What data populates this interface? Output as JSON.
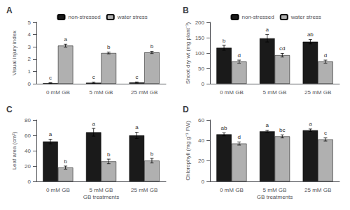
{
  "chart_data": [
    {
      "type": "bar",
      "title": "A",
      "categories": [
        "0 mM GB",
        "5 mM GB",
        "25 mM GB"
      ],
      "ylabel": "Visual injury index",
      "ylim": [
        0,
        5
      ],
      "yticks": [
        0,
        1,
        2,
        3,
        4,
        5
      ],
      "grid": false,
      "legend": "top",
      "series": [
        {
          "name": "non-stressed",
          "color": "#1a1a1a",
          "values": [
            0.05,
            0.08,
            0.1
          ],
          "err": [
            0.03,
            0.04,
            0.04
          ],
          "labels": [
            "c",
            "c",
            "c"
          ]
        },
        {
          "name": "water stress",
          "color": "#b0b0b0",
          "values": [
            3.1,
            2.5,
            2.55
          ],
          "err": [
            0.12,
            0.07,
            0.09
          ],
          "labels": [
            "a",
            "b",
            "b"
          ]
        }
      ]
    },
    {
      "type": "bar",
      "title": "B",
      "categories": [
        "0 mM GB",
        "5 mM GB",
        "25 mM GB"
      ],
      "ylabel": "Shoot dry wt (mg plant⁻¹)",
      "ylim": [
        0,
        200
      ],
      "yticks": [
        0,
        50,
        100,
        150,
        200
      ],
      "grid": false,
      "legend": "top",
      "series": [
        {
          "name": "non-stressed",
          "color": "#1a1a1a",
          "values": [
            117,
            148,
            137
          ],
          "err": [
            8,
            12,
            7
          ],
          "labels": [
            "b",
            "a",
            "ab"
          ]
        },
        {
          "name": "water stress",
          "color": "#b0b0b0",
          "values": [
            72,
            93,
            72
          ],
          "err": [
            5,
            6,
            5
          ],
          "labels": [
            "d",
            "cd",
            "d"
          ]
        }
      ]
    },
    {
      "type": "bar",
      "title": "C",
      "categories": [
        "0 mM GB",
        "5 mM GB",
        "25 mM GB"
      ],
      "xlabel": "GB treatments",
      "ylabel": "Leaf area (cm²)",
      "ylim": [
        0,
        80
      ],
      "yticks": [
        0,
        20,
        40,
        60,
        80
      ],
      "grid": false,
      "series": [
        {
          "name": "non-stressed",
          "color": "#1a1a1a",
          "values": [
            52,
            64,
            60
          ],
          "err": [
            3,
            5,
            4
          ],
          "labels": [
            "a",
            "a",
            "a"
          ]
        },
        {
          "name": "water stress",
          "color": "#b0b0b0",
          "values": [
            18,
            26,
            27
          ],
          "err": [
            2,
            3,
            3
          ],
          "labels": [
            "b",
            "b",
            "b"
          ]
        }
      ]
    },
    {
      "type": "bar",
      "title": "D",
      "categories": [
        "0 mM GB",
        "5 mM GB",
        "25 mM GB"
      ],
      "xlabel": "GB treatments",
      "ylabel": "Chlorophyll (mg g⁻¹ FW)",
      "ylim": [
        0,
        60
      ],
      "yticks": [
        0,
        20,
        40,
        60
      ],
      "grid": false,
      "series": [
        {
          "name": "non-stressed",
          "color": "#1a1a1a",
          "values": [
            46,
            49,
            50
          ],
          "err": [
            1.5,
            1.0,
            1.2
          ],
          "labels": [
            "ab",
            "a",
            "a"
          ]
        },
        {
          "name": "water stress",
          "color": "#b0b0b0",
          "values": [
            37,
            44,
            41
          ],
          "err": [
            1.5,
            1.5,
            1.5
          ],
          "labels": [
            "d",
            "bc",
            "c"
          ]
        }
      ]
    }
  ]
}
